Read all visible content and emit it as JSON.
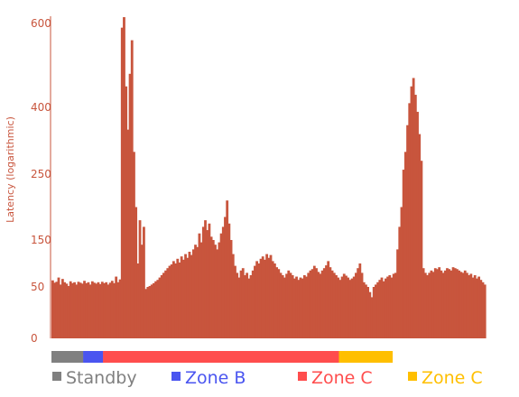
{
  "chart_data": {
    "type": "bar",
    "title": "",
    "xlabel": "",
    "ylabel": "Latency (logarithmic)",
    "y_scale": "log",
    "yticks": [
      0,
      50,
      150,
      250,
      400,
      600
    ],
    "ylim": [
      0,
      600
    ],
    "grid": false,
    "bar_color": "#c8553d",
    "axis_color": "#c8553d",
    "legend_position": "bottom",
    "zones": [
      {
        "name": "Standby",
        "color": "#808080",
        "bars": 16
      },
      {
        "name": "Zone B",
        "color": "#4a55f0",
        "bars": 10
      },
      {
        "name": "Zone C",
        "color": "#ff4d4d",
        "bars": 119
      },
      {
        "name": "Zone C",
        "color": "#ffbf00",
        "bars": 27
      }
    ],
    "values": [
      64,
      59,
      61,
      70,
      55,
      67,
      60,
      57,
      52,
      62,
      58,
      60,
      55,
      61,
      59,
      57,
      63,
      58,
      60,
      55,
      62,
      59,
      57,
      60,
      56,
      61,
      58,
      60,
      55,
      59,
      63,
      58,
      72,
      60,
      66,
      590,
      615,
      450,
      350,
      480,
      560,
      300,
      200,
      100,
      180,
      140,
      170,
      48,
      50,
      52,
      55,
      58,
      62,
      65,
      70,
      75,
      80,
      85,
      90,
      95,
      98,
      105,
      100,
      110,
      102,
      115,
      108,
      120,
      112,
      125,
      118,
      130,
      140,
      135,
      160,
      145,
      170,
      180,
      165,
      175,
      155,
      150,
      140,
      130,
      145,
      160,
      170,
      185,
      210,
      175,
      150,
      120,
      95,
      80,
      70,
      85,
      90,
      75,
      80,
      68,
      75,
      85,
      95,
      105,
      100,
      110,
      115,
      108,
      120,
      112,
      118,
      105,
      100,
      92,
      88,
      80,
      75,
      70,
      78,
      85,
      80,
      75,
      68,
      72,
      65,
      70,
      68,
      75,
      72,
      80,
      85,
      88,
      95,
      90,
      82,
      78,
      85,
      90,
      96,
      105,
      92,
      85,
      80,
      75,
      70,
      65,
      72,
      78,
      74,
      70,
      65,
      68,
      72,
      80,
      90,
      100,
      80,
      60,
      55,
      50,
      45,
      40,
      50,
      55,
      60,
      65,
      70,
      62,
      68,
      72,
      75,
      70,
      78,
      80,
      130,
      170,
      200,
      260,
      300,
      360,
      410,
      450,
      470,
      430,
      390,
      340,
      280,
      90,
      80,
      75,
      80,
      85,
      82,
      90,
      88,
      92,
      85,
      80,
      85,
      90,
      88,
      85,
      92,
      90,
      88,
      85,
      82,
      80,
      85,
      80,
      75,
      78,
      70,
      75,
      68,
      72,
      65,
      60,
      55
    ]
  },
  "legend": [
    {
      "label": "Standby",
      "color": "#808080"
    },
    {
      "label": "Zone B",
      "color": "#4a55f0"
    },
    {
      "label": "Zone C",
      "color": "#ff4d4d"
    },
    {
      "label": "Zone C",
      "color": "#ffbf00"
    }
  ]
}
